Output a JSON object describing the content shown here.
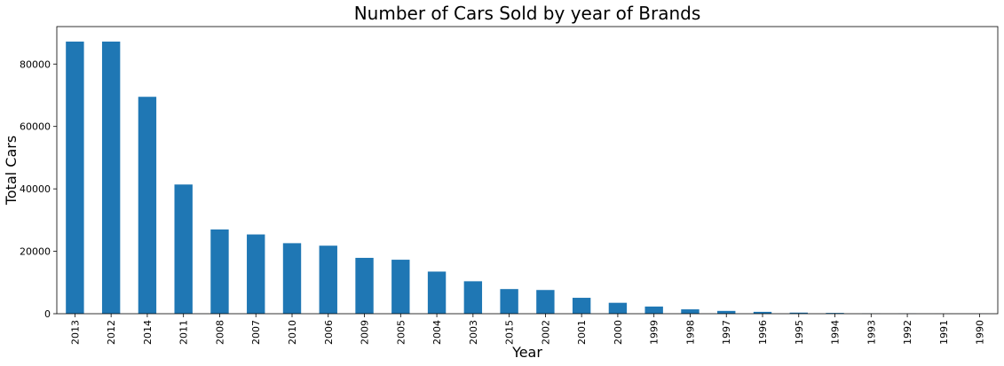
{
  "chart_data": {
    "type": "bar",
    "title": "Number of Cars Sold by year of Brands",
    "xlabel": "Year",
    "ylabel": "Total Cars",
    "categories": [
      "2013",
      "2012",
      "2014",
      "2011",
      "2008",
      "2007",
      "2010",
      "2006",
      "2009",
      "2005",
      "2004",
      "2003",
      "2015",
      "2002",
      "2001",
      "2000",
      "1999",
      "1998",
      "1997",
      "1996",
      "1995",
      "1994",
      "1993",
      "1992",
      "1991",
      "1990"
    ],
    "values": [
      87200,
      87200,
      69500,
      41400,
      27000,
      25400,
      22600,
      21800,
      17900,
      17300,
      13500,
      10400,
      7900,
      7600,
      5100,
      3500,
      2300,
      1400,
      900,
      600,
      350,
      250,
      60,
      30,
      10,
      5
    ],
    "ylim": [
      0,
      92000
    ],
    "yticks": [
      0,
      20000,
      40000,
      60000,
      80000
    ],
    "ytick_labels": [
      "0",
      "20000",
      "40000",
      "60000",
      "80000"
    ],
    "bar_color": "#1f77b4",
    "grid": false,
    "legend": "none"
  }
}
